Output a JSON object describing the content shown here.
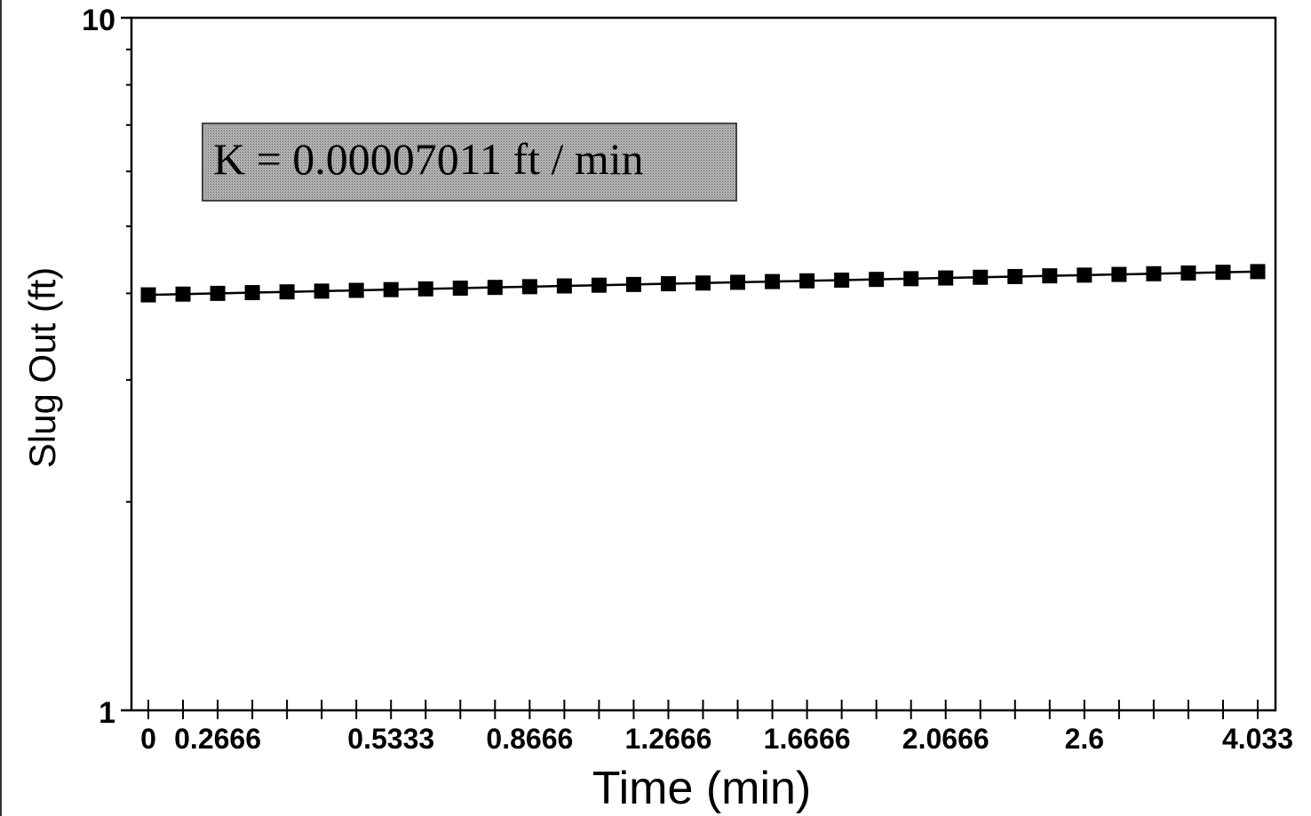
{
  "chart_data": {
    "type": "line",
    "xlabel": "Time (min)",
    "ylabel": "Slug Out (ft)",
    "y_scale": "log",
    "ylim": [
      1,
      10
    ],
    "y_tick_labels": [
      "10",
      "1"
    ],
    "x_tick_labels": [
      "0",
      "0.2666",
      "0.5333",
      "0.8666",
      "1.2666",
      "1.6666",
      "2.0666",
      "2.6",
      "4.033"
    ],
    "annotation": "K = 0.00007011 ft / min",
    "series": [
      {
        "marker": "square",
        "color": "#000000",
        "x": [
          "0",
          "",
          "0.2666",
          "",
          "",
          "",
          "",
          "0.5333",
          "",
          "",
          "",
          "0.8666",
          "",
          "",
          "",
          "1.2666",
          "",
          "",
          "",
          "1.6666",
          "",
          "",
          "",
          "2.0666",
          "",
          "",
          "",
          "2.6",
          "",
          "",
          "",
          "",
          "4.033"
        ],
        "y": [
          3.98,
          3.99,
          4.0,
          4.01,
          4.02,
          4.03,
          4.04,
          4.05,
          4.06,
          4.07,
          4.08,
          4.09,
          4.1,
          4.11,
          4.12,
          4.13,
          4.14,
          4.15,
          4.16,
          4.17,
          4.18,
          4.19,
          4.2,
          4.21,
          4.22,
          4.23,
          4.24,
          4.25,
          4.26,
          4.27,
          4.28,
          4.29,
          4.3
        ]
      }
    ]
  }
}
